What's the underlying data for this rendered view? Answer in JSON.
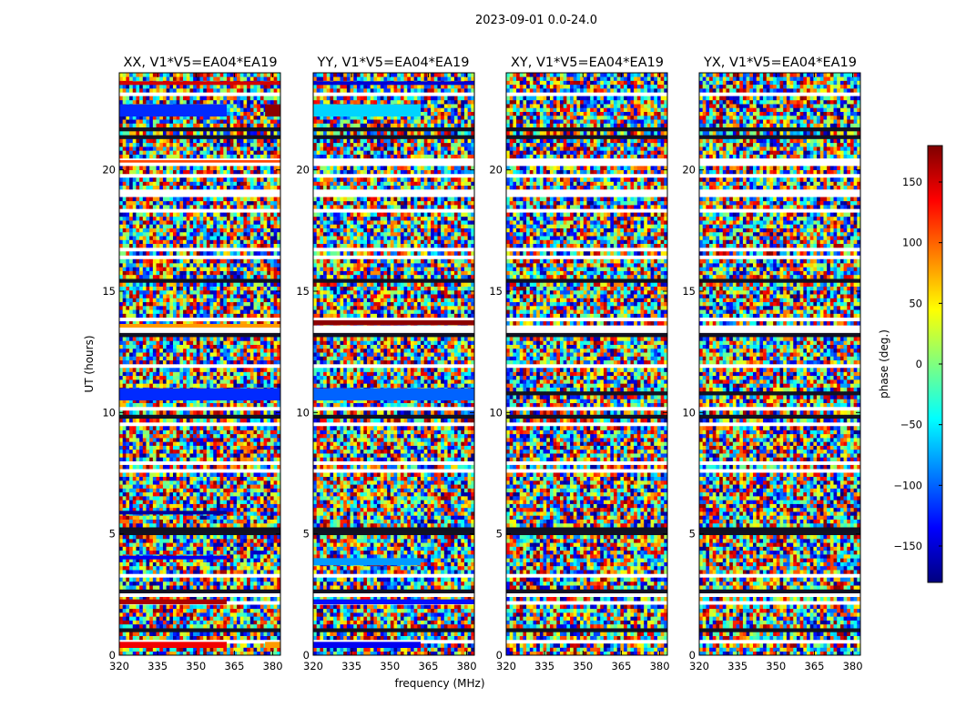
{
  "figure_title": "2023-09-01 0.0-24.0",
  "colorbar": {
    "label": "phase (deg.)",
    "ticks": [
      150,
      100,
      50,
      0,
      -50,
      -100,
      -150
    ],
    "tick_labels": [
      "150",
      "100",
      "50",
      "0",
      "−50",
      "−100",
      "−150"
    ],
    "range": [
      -180,
      180
    ],
    "colormap": [
      "#00007f",
      "#0000ff",
      "#007fff",
      "#00ffff",
      "#7fff7f",
      "#ffff00",
      "#ff7f00",
      "#ff0000",
      "#7f0000"
    ]
  },
  "chart_data": [
    {
      "type": "heatmap",
      "title": "XX, V1*V5=EA04*EA19",
      "xlabel": "",
      "ylabel": "UT (hours)",
      "xlim": [
        320,
        383
      ],
      "ylim": [
        0,
        24
      ],
      "xticks": [
        320,
        335,
        350,
        365,
        380
      ],
      "yticks": [
        0,
        5,
        10,
        15,
        20
      ],
      "zlabel": "phase (deg.)",
      "zlim": [
        -180,
        180
      ],
      "coherent_bands": [
        {
          "t0": 0.3,
          "t1": 0.55,
          "f0": 320,
          "f1": 362,
          "phase": 140
        },
        {
          "t0": 0.3,
          "t1": 0.55,
          "f0": 377,
          "f1": 383,
          "phase": 80
        },
        {
          "t0": 2.1,
          "t1": 2.3,
          "f0": 320,
          "f1": 362,
          "phase": 165
        },
        {
          "t0": 3.95,
          "t1": 4.1,
          "f0": 320,
          "f1": 362,
          "phase": -140
        },
        {
          "t0": 5.8,
          "t1": 5.95,
          "f0": 320,
          "f1": 362,
          "phase": -170
        },
        {
          "t0": 10.5,
          "t1": 11.0,
          "f0": 320,
          "f1": 383,
          "phase": -120
        },
        {
          "t0": 13.5,
          "t1": 13.65,
          "f0": 320,
          "f1": 383,
          "phase": 80
        },
        {
          "t0": 20.3,
          "t1": 20.4,
          "f0": 320,
          "f1": 383,
          "phase": 110
        },
        {
          "t0": 22.2,
          "t1": 22.7,
          "f0": 320,
          "f1": 362,
          "phase": -120
        },
        {
          "t0": 22.2,
          "t1": 22.7,
          "f0": 377,
          "f1": 383,
          "phase": 175
        },
        {
          "t0": 23.5,
          "t1": 23.65,
          "f0": 320,
          "f1": 383,
          "phase": 150
        }
      ]
    },
    {
      "type": "heatmap",
      "title": "YY, V1*V5=EA04*EA19",
      "xlabel": "frequency (MHz)",
      "ylabel": "",
      "xlim": [
        320,
        383
      ],
      "ylim": [
        0,
        24
      ],
      "xticks": [
        320,
        335,
        350,
        365,
        380
      ],
      "yticks": [
        0,
        5,
        10,
        15,
        20
      ],
      "zlabel": "phase (deg.)",
      "zlim": [
        -180,
        180
      ],
      "coherent_bands": [
        {
          "t0": 0.3,
          "t1": 0.55,
          "f0": 320,
          "f1": 362,
          "phase": -140
        },
        {
          "t0": 2.1,
          "t1": 2.3,
          "f0": 320,
          "f1": 383,
          "phase": -130
        },
        {
          "t0": 3.7,
          "t1": 4.0,
          "f0": 320,
          "f1": 362,
          "phase": -80
        },
        {
          "t0": 10.5,
          "t1": 11.0,
          "f0": 320,
          "f1": 383,
          "phase": -100
        },
        {
          "t0": 13.6,
          "t1": 13.8,
          "f0": 320,
          "f1": 383,
          "phase": 175
        },
        {
          "t0": 22.2,
          "t1": 22.7,
          "f0": 320,
          "f1": 362,
          "phase": -60
        },
        {
          "t0": 23.5,
          "t1": 23.65,
          "f0": 320,
          "f1": 383,
          "phase": -150
        }
      ]
    },
    {
      "type": "heatmap",
      "title": "XY, V1*V5=EA04*EA19",
      "xlabel": "",
      "ylabel": "",
      "xlim": [
        320,
        383
      ],
      "ylim": [
        0,
        24
      ],
      "xticks": [
        320,
        335,
        350,
        365,
        380
      ],
      "yticks": [
        0,
        5,
        10,
        15,
        20
      ],
      "zlabel": "phase (deg.)",
      "zlim": [
        -180,
        180
      ],
      "coherent_bands": []
    },
    {
      "type": "heatmap",
      "title": "YX, V1*V5=EA04*EA19",
      "xlabel": "",
      "ylabel": "",
      "xlim": [
        320,
        383
      ],
      "ylim": [
        0,
        24
      ],
      "xticks": [
        320,
        335,
        350,
        365,
        380
      ],
      "yticks": [
        0,
        5,
        10,
        15,
        20
      ],
      "zlabel": "phase (deg.)",
      "zlim": [
        -180,
        180
      ],
      "coherent_bands": []
    }
  ]
}
